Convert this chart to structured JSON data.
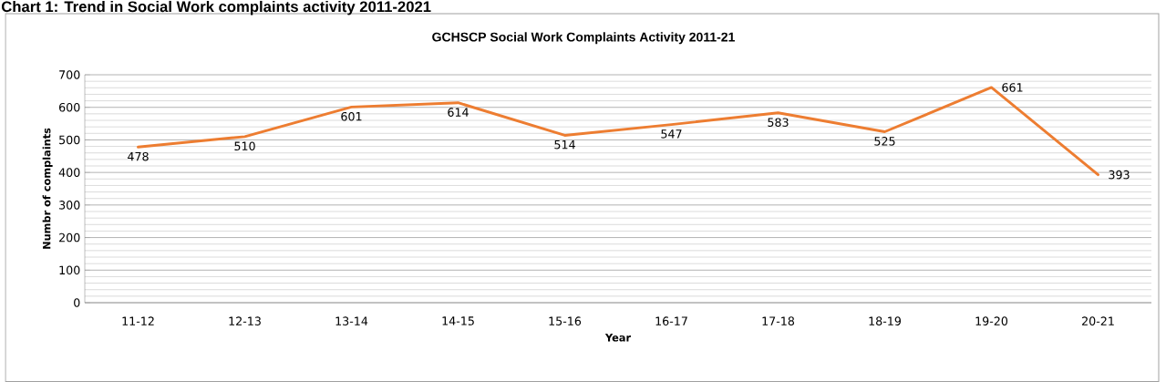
{
  "chart_data": {
    "type": "line",
    "title": "Chart 1: Trend in Social Work complaints activity 2011-2021",
    "subtitle": "GCHSCP Social Work Complaints Activity 2011-21",
    "xlabel": "Year",
    "ylabel": "Numbr of complaints",
    "categories": [
      "11-12",
      "12-13",
      "13-14",
      "14-15",
      "15-16",
      "16-17",
      "17-18",
      "18-19",
      "19-20",
      "20-21"
    ],
    "series": [
      {
        "color": "#ed7d31",
        "values": [
          478,
          510,
          601,
          614,
          514,
          547,
          583,
          525,
          661,
          393
        ]
      }
    ],
    "ylim": [
      0,
      700
    ],
    "yticks": [
      0,
      100,
      200,
      300,
      400,
      500,
      600,
      700
    ],
    "grid": "y",
    "data_labels": true,
    "marker": "none",
    "line_style": "solid"
  }
}
